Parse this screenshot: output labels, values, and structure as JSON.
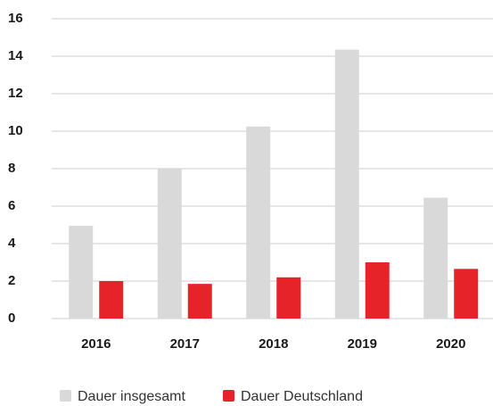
{
  "chart_data": {
    "type": "bar",
    "categories": [
      "2016",
      "2017",
      "2018",
      "2019",
      "2020"
    ],
    "series": [
      {
        "name": "Dauer insgesamt",
        "color": "#d9d9d9",
        "values": [
          4.95,
          8.0,
          10.25,
          14.35,
          6.45
        ]
      },
      {
        "name": "Dauer Deutschland",
        "color": "#e52329",
        "values": [
          2.0,
          1.85,
          2.2,
          3.0,
          2.65
        ]
      }
    ],
    "ylim": [
      0,
      16
    ],
    "yticks": [
      0,
      2,
      4,
      6,
      8,
      10,
      12,
      14,
      16
    ],
    "grid": true,
    "legend": "bottom"
  }
}
